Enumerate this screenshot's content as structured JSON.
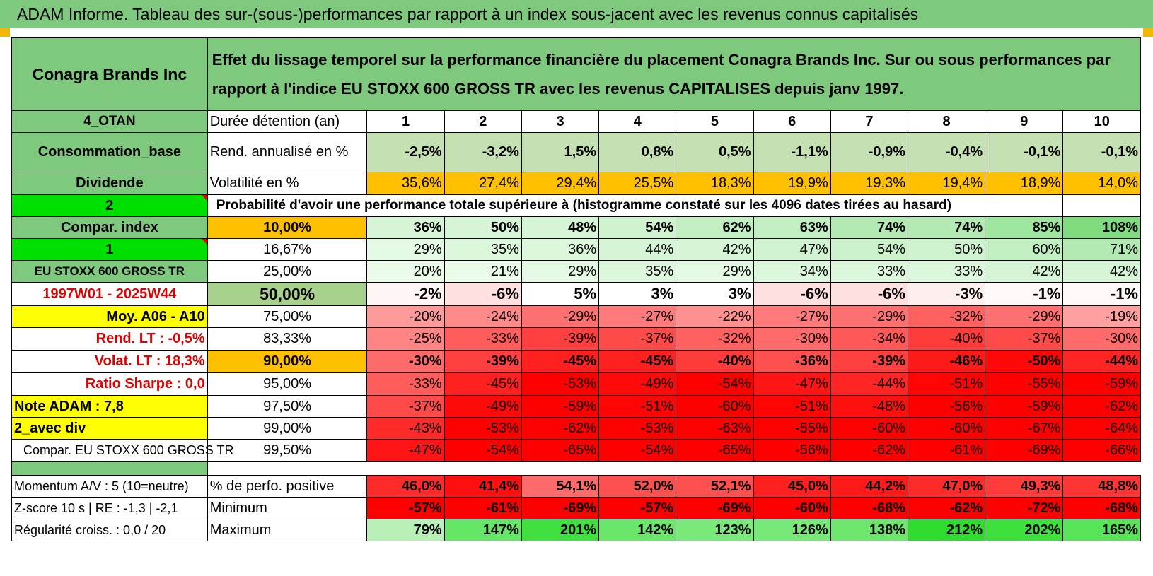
{
  "title": "ADAM Informe. Tableau des sur-(sous-)performances par rapport à un index sous-jacent avec les revenus connus capitalisés",
  "company": "Conagra Brands Inc",
  "description": "Effet du lissage temporel sur la performance financière du placement Conagra Brands Inc. Sur ou sous performances par rapport à l'indice EU STOXX 600 GROSS TR avec les revenus CAPITALISES depuis janv 1997.",
  "left_labels": {
    "otan": "4_OTAN",
    "sector": "Consommation_base",
    "dividende": "Dividende",
    "num2": "2",
    "compar_index": "Compar. index",
    "num1": "1",
    "index_name": "EU STOXX 600 GROSS TR",
    "period": "1997W01 - 2025W44",
    "moy": "Moy. A06 - A10",
    "rend_lt": "Rend. LT :    -0,5%",
    "volat_lt": "Volat. LT :    18,3%",
    "sharpe": "Ratio Sharpe :    0,0",
    "note": "Note ADAM : 7,8",
    "avec_div": "2_avec div",
    "compar_full": "Compar. EU STOXX 600 GROSS TR",
    "momentum": "Momentum A/V : 5 (10=neutre)",
    "zscore": "Z-score 10 s | RE : -1,3 | -2,1",
    "regularite": "Régularité croiss. : 0,0 / 20"
  },
  "header_row": {
    "label": "Durée détention (an)",
    "years": [
      "1",
      "2",
      "3",
      "4",
      "5",
      "6",
      "7",
      "8",
      "9",
      "10"
    ]
  },
  "rend_row": {
    "label": "Rend. annualisé en %",
    "values": [
      "-2,5%",
      "-3,2%",
      "1,5%",
      "0,8%",
      "0,5%",
      "-1,1%",
      "-0,9%",
      "-0,4%",
      "-0,1%",
      "-0,1%"
    ]
  },
  "vol_row": {
    "label": "Volatilité en %",
    "values": [
      "35,6%",
      "27,4%",
      "29,4%",
      "25,5%",
      "18,3%",
      "19,9%",
      "19,3%",
      "19,4%",
      "18,9%",
      "14,0%"
    ]
  },
  "prob_title": "Probabilité d'avoir une performance totale supérieure à (histogramme constaté sur les 4096 dates tirées au hasard)",
  "quantile_rows": [
    {
      "pct": "10,00%",
      "values": [
        "36%",
        "50%",
        "48%",
        "54%",
        "62%",
        "63%",
        "74%",
        "74%",
        "85%",
        "108%"
      ],
      "colors": [
        "#d6f5d6",
        "#d6f5d6",
        "#d6f5d6",
        "#cff2cf",
        "#c2efc2",
        "#c2efc2",
        "#b3eab3",
        "#b3eab3",
        "#9ee59e",
        "#7fdc7f"
      ]
    },
    {
      "pct": "16,67%",
      "values": [
        "29%",
        "35%",
        "36%",
        "44%",
        "42%",
        "47%",
        "54%",
        "50%",
        "60%",
        "71%"
      ],
      "colors": [
        "#e3f9e3",
        "#ddf7dd",
        "#ddf7dd",
        "#d6f5d6",
        "#d6f5d6",
        "#d1f3d1",
        "#cbf1cb",
        "#cff2cf",
        "#c2efc2",
        "#b3eab3"
      ]
    },
    {
      "pct": "25,00%",
      "values": [
        "20%",
        "21%",
        "29%",
        "35%",
        "29%",
        "34%",
        "33%",
        "33%",
        "42%",
        "42%"
      ],
      "colors": [
        "#eafbea",
        "#eafbea",
        "#e3f9e3",
        "#ddf7dd",
        "#e3f9e3",
        "#ddf7dd",
        "#ddf7dd",
        "#ddf7dd",
        "#d6f5d6",
        "#d6f5d6"
      ]
    },
    {
      "pct": "50,00%",
      "values": [
        "-2%",
        "-6%",
        "5%",
        "3%",
        "3%",
        "-6%",
        "-6%",
        "-3%",
        "-1%",
        "-1%"
      ],
      "colors": [
        "#fff5f5",
        "#ffe0e0",
        "#ffffff",
        "#ffffff",
        "#ffffff",
        "#ffe0e0",
        "#ffe0e0",
        "#ffeeee",
        "#fff8f8",
        "#fff8f8"
      ]
    },
    {
      "pct": "75,00%",
      "values": [
        "-20%",
        "-24%",
        "-29%",
        "-27%",
        "-22%",
        "-27%",
        "-29%",
        "-32%",
        "-29%",
        "-19%"
      ],
      "colors": [
        "#ff9a9a",
        "#ff8a8a",
        "#ff7070",
        "#ff7a7a",
        "#ff9090",
        "#ff7a7a",
        "#ff7070",
        "#ff6060",
        "#ff7070",
        "#ffa0a0"
      ]
    },
    {
      "pct": "83,33%",
      "values": [
        "-25%",
        "-33%",
        "-39%",
        "-37%",
        "-32%",
        "-30%",
        "-34%",
        "-40%",
        "-37%",
        "-30%"
      ],
      "colors": [
        "#ff8585",
        "#ff5c5c",
        "#ff4040",
        "#ff4a4a",
        "#ff6060",
        "#ff6a6a",
        "#ff5858",
        "#ff3c3c",
        "#ff4a4a",
        "#ff6a6a"
      ]
    },
    {
      "pct": "90,00%",
      "values": [
        "-30%",
        "-39%",
        "-45%",
        "-45%",
        "-40%",
        "-36%",
        "-39%",
        "-46%",
        "-50%",
        "-44%"
      ],
      "colors": [
        "#ff6a6a",
        "#ff4040",
        "#ff2020",
        "#ff2020",
        "#ff3c3c",
        "#ff5050",
        "#ff4040",
        "#ff1a1a",
        "#ff0808",
        "#ff2525"
      ]
    },
    {
      "pct": "95,00%",
      "values": [
        "-33%",
        "-45%",
        "-53%",
        "-49%",
        "-54%",
        "-47%",
        "-44%",
        "-51%",
        "-55%",
        "-59%"
      ],
      "colors": [
        "#ff5c5c",
        "#ff2020",
        "#ff0000",
        "#ff0a0a",
        "#ff0000",
        "#ff1515",
        "#ff2525",
        "#ff0505",
        "#ff0000",
        "#ff0000"
      ]
    },
    {
      "pct": "97,50%",
      "values": [
        "-37%",
        "-49%",
        "-59%",
        "-51%",
        "-60%",
        "-51%",
        "-48%",
        "-56%",
        "-59%",
        "-62%"
      ],
      "colors": [
        "#ff4a4a",
        "#ff0a0a",
        "#ff0000",
        "#ff0505",
        "#ff0000",
        "#ff0505",
        "#ff1010",
        "#ff0000",
        "#ff0000",
        "#ff0000"
      ]
    },
    {
      "pct": "99,00%",
      "values": [
        "-43%",
        "-53%",
        "-62%",
        "-53%",
        "-63%",
        "-55%",
        "-60%",
        "-60%",
        "-67%",
        "-64%"
      ],
      "colors": [
        "#ff2a2a",
        "#ff0000",
        "#ff0000",
        "#ff0000",
        "#ff0000",
        "#ff0000",
        "#ff0000",
        "#ff0000",
        "#ff0000",
        "#ff0000"
      ]
    },
    {
      "pct": "99,50%",
      "values": [
        "-47%",
        "-54%",
        "-65%",
        "-54%",
        "-65%",
        "-56%",
        "-62%",
        "-61%",
        "-69%",
        "-66%"
      ],
      "colors": [
        "#ff1515",
        "#ff0000",
        "#ff0000",
        "#ff0000",
        "#ff0000",
        "#ff0000",
        "#ff0000",
        "#ff0000",
        "#ff0000",
        "#ff0000"
      ]
    }
  ],
  "stat_rows": [
    {
      "label": "% de perfo. positive",
      "values": [
        "46,0%",
        "41,4%",
        "54,1%",
        "52,0%",
        "52,1%",
        "45,0%",
        "44,2%",
        "47,0%",
        "49,3%",
        "48,8%"
      ],
      "colors": [
        "#ff2a2a",
        "#ff1010",
        "#ff6a6a",
        "#ff5050",
        "#ff5050",
        "#ff2020",
        "#ff1a1a",
        "#ff2a2a",
        "#ff3c3c",
        "#ff3535"
      ]
    },
    {
      "label": "Minimum",
      "values": [
        "-57%",
        "-61%",
        "-69%",
        "-57%",
        "-69%",
        "-60%",
        "-68%",
        "-62%",
        "-72%",
        "-68%"
      ],
      "colors": [
        "#ff0000",
        "#ff0000",
        "#ff0000",
        "#ff0000",
        "#ff0000",
        "#ff0000",
        "#ff0000",
        "#ff0000",
        "#ff0000",
        "#ff0000"
      ]
    },
    {
      "label": "Maximum",
      "values": [
        "79%",
        "147%",
        "201%",
        "142%",
        "123%",
        "126%",
        "138%",
        "212%",
        "202%",
        "165%"
      ],
      "colors": [
        "#b8f0b8",
        "#66e666",
        "#3fe03f",
        "#6ae66a",
        "#7ae87a",
        "#78e878",
        "#6ee66e",
        "#2fdc2f",
        "#3ee03e",
        "#58e458"
      ]
    }
  ],
  "colors": {
    "green_header": "#7fc97f",
    "light_green": "#c5e0b3",
    "orange": "#ffc000",
    "bright_green": "#00e000",
    "yellow": "#ffff00",
    "red_text": "#e00000"
  }
}
